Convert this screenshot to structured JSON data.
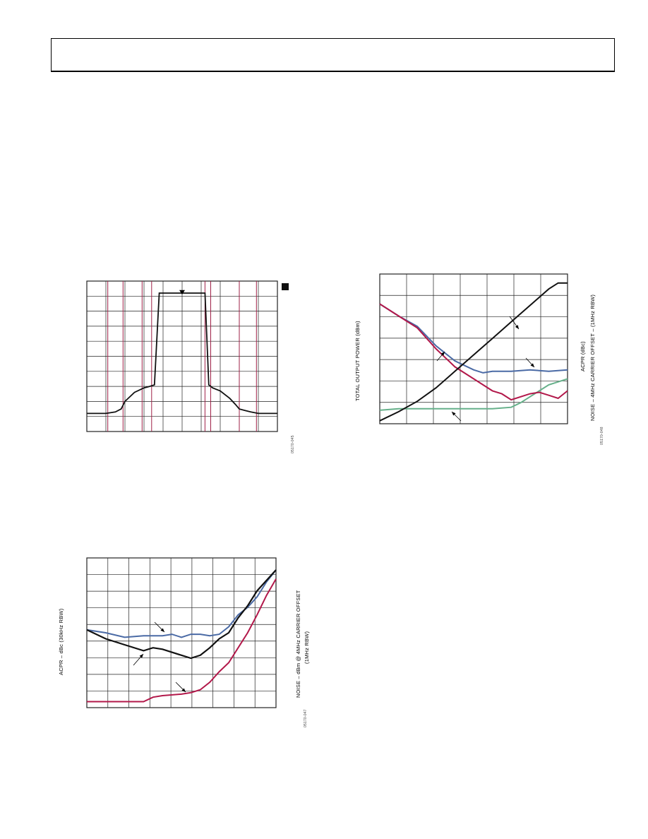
{
  "page": {
    "header_text": ""
  },
  "colors": {
    "black": "#111111",
    "blue": "#4a6aa5",
    "red": "#b2184a",
    "green": "#66b08a",
    "grid": "#222222",
    "marker": "#9e2047"
  },
  "figures": {
    "fig1": {
      "code": "05170-045"
    },
    "fig2": {
      "y_left_label": "TOTAL OUTPUT POWER (dBm)",
      "y_right_label_1": "ACPR (dBc)",
      "y_right_label_2": "NOISE – 4MHz CARRIER OFFSET – (1MHz RBW)",
      "code": "05170-048"
    },
    "fig3": {
      "y_left_label": "ACPR – dBc (30kHz RBW)",
      "y_right_label_1": "NOISE – dBm @ 4MHz CARRIER OFFSET",
      "y_right_label_2": "(1MHz RBW)",
      "code": "05170-047"
    }
  },
  "chart_data": [
    {
      "type": "line",
      "title": "",
      "xlabel": "",
      "ylabel": "",
      "grid": true,
      "series": [
        {
          "x": [
            0,
            0.05,
            0.1,
            0.15,
            0.18,
            0.2,
            0.25,
            0.3,
            0.33,
            0.355,
            0.38,
            0.4,
            0.45,
            0.5,
            0.55,
            0.6,
            0.62,
            0.64,
            0.66,
            0.7,
            0.75,
            0.78,
            0.8,
            0.83,
            0.86,
            0.9,
            1
          ],
          "y": [
            0.12,
            0.12,
            0.12,
            0.13,
            0.15,
            0.2,
            0.26,
            0.29,
            0.3,
            0.31,
            0.92,
            0.92,
            0.92,
            0.92,
            0.92,
            0.92,
            0.92,
            0.31,
            0.29,
            0.27,
            0.22,
            0.18,
            0.15,
            0.14,
            0.13,
            0.12,
            0.12
          ]
        }
      ],
      "markers_x": [
        0.11,
        0.19,
        0.29,
        0.34,
        0.62,
        0.65,
        0.8,
        0.89
      ]
    },
    {
      "type": "line",
      "title": "",
      "grid": true,
      "series": [
        {
          "x": [
            0,
            0.1,
            0.2,
            0.3,
            0.4,
            0.5,
            0.6,
            0.7,
            0.8,
            0.9,
            0.95,
            1
          ],
          "y": [
            0.02,
            0.08,
            0.15,
            0.24,
            0.35,
            0.46,
            0.57,
            0.68,
            0.79,
            0.9,
            0.94,
            0.94
          ]
        },
        {
          "x": [
            0,
            0.05,
            0.1,
            0.2,
            0.3,
            0.4,
            0.5,
            0.55,
            0.6,
            0.7,
            0.8,
            0.9,
            1
          ],
          "y": [
            0.8,
            0.76,
            0.72,
            0.65,
            0.52,
            0.42,
            0.36,
            0.34,
            0.35,
            0.35,
            0.36,
            0.35,
            0.36
          ]
        },
        {
          "x": [
            0,
            0.05,
            0.1,
            0.2,
            0.3,
            0.4,
            0.5,
            0.6,
            0.65,
            0.7,
            0.8,
            0.85,
            0.9,
            0.95,
            1
          ],
          "y": [
            0.8,
            0.76,
            0.72,
            0.64,
            0.5,
            0.38,
            0.3,
            0.22,
            0.2,
            0.16,
            0.2,
            0.21,
            0.19,
            0.17,
            0.22
          ]
        },
        {
          "x": [
            0,
            0.1,
            0.2,
            0.3,
            0.4,
            0.5,
            0.6,
            0.7,
            0.75,
            0.8,
            0.9,
            1
          ],
          "y": [
            0.09,
            0.1,
            0.1,
            0.1,
            0.1,
            0.1,
            0.1,
            0.11,
            0.14,
            0.18,
            0.26,
            0.3
          ]
        }
      ]
    },
    {
      "type": "line",
      "title": "",
      "grid": true,
      "series": [
        {
          "x": [
            0,
            0.1,
            0.2,
            0.3,
            0.4,
            0.45,
            0.5,
            0.55,
            0.6,
            0.65,
            0.7,
            0.75,
            0.8,
            0.85,
            0.9,
            0.95,
            1
          ],
          "y": [
            0.52,
            0.5,
            0.47,
            0.48,
            0.48,
            0.49,
            0.47,
            0.49,
            0.49,
            0.48,
            0.49,
            0.54,
            0.62,
            0.67,
            0.74,
            0.84,
            0.92
          ]
        },
        {
          "x": [
            0,
            0.1,
            0.2,
            0.3,
            0.35,
            0.4,
            0.5,
            0.55,
            0.6,
            0.65,
            0.7,
            0.75,
            0.8,
            0.85,
            0.9,
            0.95,
            1
          ],
          "y": [
            0.52,
            0.46,
            0.42,
            0.38,
            0.4,
            0.39,
            0.35,
            0.33,
            0.35,
            0.4,
            0.46,
            0.5,
            0.6,
            0.68,
            0.78,
            0.85,
            0.92
          ]
        },
        {
          "x": [
            0,
            0.1,
            0.2,
            0.3,
            0.35,
            0.4,
            0.5,
            0.55,
            0.6,
            0.65,
            0.7,
            0.75,
            0.8,
            0.85,
            0.9,
            0.95,
            1
          ],
          "y": [
            0.04,
            0.04,
            0.04,
            0.04,
            0.07,
            0.08,
            0.09,
            0.1,
            0.12,
            0.17,
            0.24,
            0.3,
            0.4,
            0.5,
            0.62,
            0.75,
            0.86
          ]
        }
      ]
    }
  ]
}
